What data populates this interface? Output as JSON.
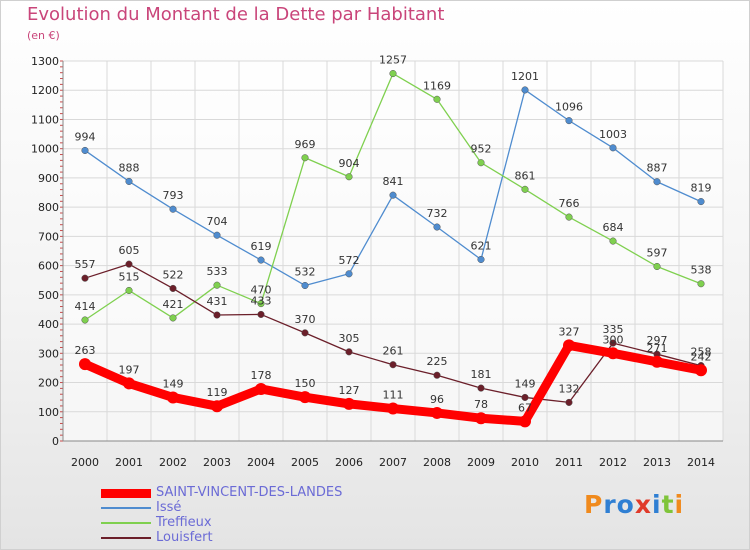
{
  "chart_data": {
    "type": "line",
    "title": "Evolution du Montant de la Dette par Habitant",
    "subtitle": "(en €)",
    "xlabel": "",
    "ylabel": "",
    "ylim": [
      0,
      1300
    ],
    "yticks": [
      0,
      100,
      200,
      300,
      400,
      500,
      600,
      700,
      800,
      900,
      1000,
      1100,
      1200,
      1300
    ],
    "grid": true,
    "categories": [
      "2000",
      "2001",
      "2002",
      "2003",
      "2004",
      "2005",
      "2006",
      "2007",
      "2008",
      "2009",
      "2010",
      "2011",
      "2012",
      "2013",
      "2014"
    ],
    "series": [
      {
        "name": "Issé",
        "color": "#4f8ccf",
        "values": [
          994,
          888,
          793,
          704,
          619,
          532,
          572,
          841,
          732,
          621,
          1201,
          1096,
          1003,
          887,
          819
        ]
      },
      {
        "name": "Treffieux",
        "color": "#7fd04f",
        "values": [
          414,
          515,
          421,
          533,
          470,
          969,
          904,
          1257,
          1169,
          952,
          861,
          766,
          684,
          597,
          538
        ]
      },
      {
        "name": "Louisfert",
        "color": "#6b1f2a",
        "values": [
          557,
          605,
          522,
          431,
          433,
          370,
          305,
          261,
          225,
          181,
          149,
          132,
          335,
          297,
          258
        ]
      },
      {
        "name": "SAINT-VINCENT-DES-LANDES",
        "color": "#ff0000",
        "emphasis": true,
        "values": [
          263,
          197,
          149,
          119,
          178,
          150,
          127,
          111,
          96,
          78,
          67,
          327,
          300,
          271,
          242
        ]
      }
    ],
    "legend": [
      "SAINT-VINCENT-DES-LANDES",
      "Issé",
      "Treffieux",
      "Louisfert"
    ],
    "legend_position": "bottom-left"
  },
  "logo": {
    "letters": [
      "P",
      "r",
      "o",
      "x",
      "i",
      "t",
      "i"
    ]
  }
}
